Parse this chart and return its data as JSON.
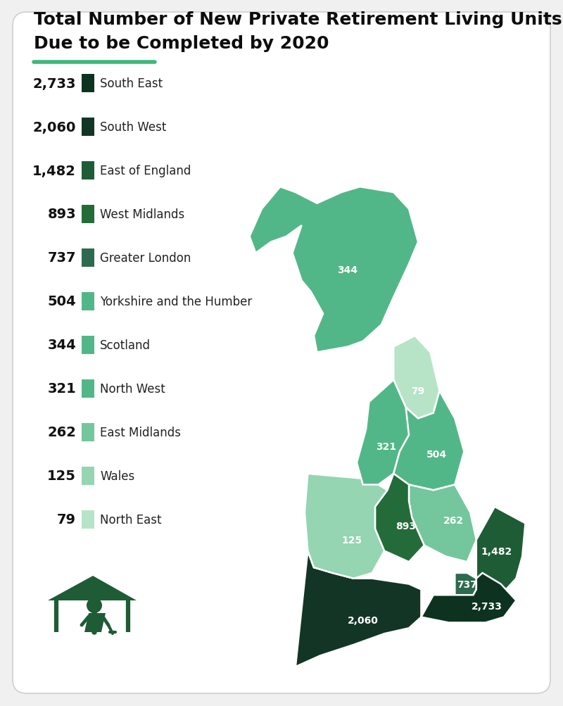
{
  "title_line1": "Total Number of New Private Retirement Living Units",
  "title_line2": "Due to be Completed by 2020",
  "bg_color": "#f0f0f0",
  "card_color": "#ffffff",
  "accent_color": "#3db87a",
  "legend_items": [
    {
      "value": "2,733",
      "label": "South East",
      "color": "#0d3320"
    },
    {
      "value": "2,060",
      "label": "South West",
      "color": "#133525"
    },
    {
      "value": "1,482",
      "label": "East of England",
      "color": "#1e5c35"
    },
    {
      "value": "893",
      "label": "West Midlands",
      "color": "#246b3a"
    },
    {
      "value": "737",
      "label": "Greater London",
      "color": "#2d6a4f"
    },
    {
      "value": "504",
      "label": "Yorkshire and the Humber",
      "color": "#52b788"
    },
    {
      "value": "344",
      "label": "Scotland",
      "color": "#52b788"
    },
    {
      "value": "321",
      "label": "North West",
      "color": "#52b788"
    },
    {
      "value": "262",
      "label": "East Midlands",
      "color": "#74c69d"
    },
    {
      "value": "125",
      "label": "Wales",
      "color": "#95d5b2"
    },
    {
      "value": "79",
      "label": "North East",
      "color": "#b7e4c7"
    }
  ],
  "region_colors": {
    "Scotland": "#52b788",
    "North East": "#b7e4c7",
    "North West": "#52b788",
    "Yorkshire": "#52b788",
    "East Midlands": "#74c69d",
    "West Midlands": "#246b3a",
    "East of England": "#1e5c35",
    "Greater London": "#2d6a4f",
    "South East": "#0d3320",
    "South West": "#133525",
    "Wales": "#95d5b2"
  },
  "icon_color": "#1e5c35"
}
